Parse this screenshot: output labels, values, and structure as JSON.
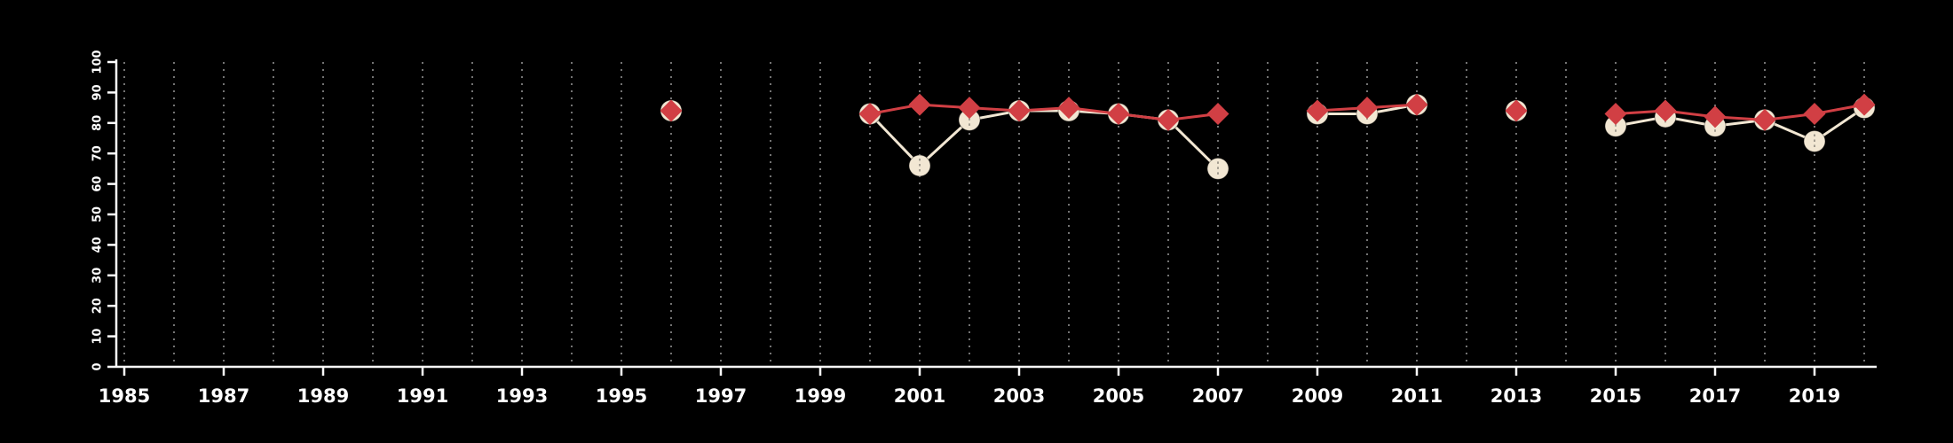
{
  "page": {
    "background_color": "#000000",
    "axis_color": "#ffffff",
    "grid_color": "#909090"
  },
  "chart_data": {
    "type": "line",
    "title": "",
    "subtitle": "",
    "xlabel": "",
    "ylabel": "",
    "xlim": [
      1985,
      2020
    ],
    "ylim": [
      0,
      100
    ],
    "grid": "vertical dashed gridline at every year from 1985 to 2020",
    "legend": "none",
    "x_tick_labels": [
      1985,
      1987,
      1989,
      1991,
      1993,
      1995,
      1997,
      1999,
      2001,
      2003,
      2005,
      2007,
      2009,
      2011,
      2013,
      2015,
      2017,
      2019
    ],
    "y_tick_labels": [
      0,
      10,
      20,
      30,
      40,
      50,
      60,
      70,
      80,
      90,
      100
    ],
    "series": [
      {
        "name": "circle-series",
        "marker": "circle",
        "color": "#f2e7d3",
        "points": [
          [
            1996,
            84
          ],
          [
            2000,
            83
          ],
          [
            2001,
            66
          ],
          [
            2002,
            81
          ],
          [
            2003,
            84
          ],
          [
            2004,
            84
          ],
          [
            2005,
            83
          ],
          [
            2006,
            81
          ],
          [
            2007,
            65
          ],
          [
            2009,
            83
          ],
          [
            2010,
            83
          ],
          [
            2011,
            86
          ],
          [
            2013,
            84
          ],
          [
            2015,
            79
          ],
          [
            2016,
            82
          ],
          [
            2017,
            79
          ],
          [
            2018,
            81
          ],
          [
            2019,
            74
          ],
          [
            2020,
            85
          ]
        ]
      },
      {
        "name": "diamond-series",
        "marker": "diamond",
        "color": "#d13f44",
        "points": [
          [
            1996,
            84
          ],
          [
            2000,
            83
          ],
          [
            2001,
            86
          ],
          [
            2002,
            85
          ],
          [
            2003,
            84
          ],
          [
            2004,
            85
          ],
          [
            2005,
            83
          ],
          [
            2006,
            81
          ],
          [
            2007,
            83
          ],
          [
            2009,
            84
          ],
          [
            2010,
            85
          ],
          [
            2011,
            86
          ],
          [
            2013,
            84
          ],
          [
            2015,
            83
          ],
          [
            2016,
            84
          ],
          [
            2017,
            82
          ],
          [
            2018,
            81
          ],
          [
            2019,
            83
          ],
          [
            2020,
            86
          ]
        ]
      }
    ]
  }
}
